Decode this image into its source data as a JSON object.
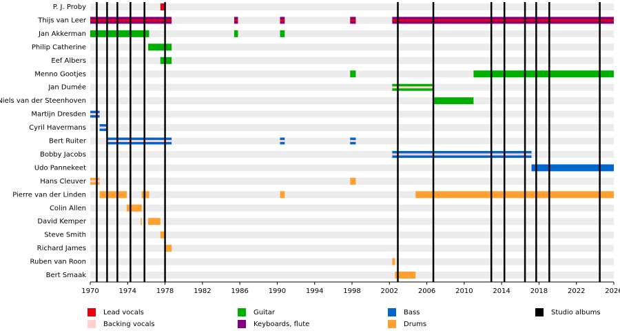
{
  "chart_data": {
    "type": "timeline",
    "xlim": [
      1970,
      2026
    ],
    "xticks": [
      1970,
      1974,
      1978,
      1982,
      1986,
      1990,
      1994,
      1998,
      2002,
      2006,
      2010,
      2014,
      2018,
      2022,
      2026
    ],
    "roles": [
      {
        "name": "Lead vocals",
        "color": "#e8000b"
      },
      {
        "name": "Backing vocals",
        "color": "#ffd0d0"
      },
      {
        "name": "Guitar",
        "color": "#00b000"
      },
      {
        "name": "Keyboards, flute",
        "color": "#800080"
      },
      {
        "name": "Bass",
        "color": "#0066cc"
      },
      {
        "name": "Drums",
        "color": "#ffa030"
      }
    ],
    "albums": {
      "name": "Studio albums",
      "color": "#000000",
      "years": [
        1970.7,
        1971.8,
        1972.9,
        1974.3,
        1975.8,
        1978.0,
        2002.9,
        2006.7,
        2012.9,
        2014.3,
        2016.5,
        2017.7,
        2019.1,
        2024.5
      ]
    },
    "members": [
      {
        "name": "P. J. Proby",
        "spans": [
          {
            "start": 1977.5,
            "end": 1978.0,
            "role": "Lead vocals"
          }
        ]
      },
      {
        "name": "Thijs van Leer",
        "spans": [
          {
            "start": 1970.0,
            "end": 1978.7,
            "role": "Keyboards, flute",
            "also": "Lead vocals"
          },
          {
            "start": 1985.4,
            "end": 1985.8,
            "role": "Keyboards, flute",
            "also": "Lead vocals"
          },
          {
            "start": 1990.3,
            "end": 1990.8,
            "role": "Keyboards, flute",
            "also": "Lead vocals"
          },
          {
            "start": 1997.8,
            "end": 1998.4,
            "role": "Keyboards, flute",
            "also": "Lead vocals"
          },
          {
            "start": 2002.3,
            "end": 2026.0,
            "role": "Keyboards, flute",
            "also": "Lead vocals"
          }
        ]
      },
      {
        "name": "Jan Akkerman",
        "spans": [
          {
            "start": 1970.0,
            "end": 1976.3,
            "role": "Guitar"
          },
          {
            "start": 1985.4,
            "end": 1985.8,
            "role": "Guitar"
          },
          {
            "start": 1990.3,
            "end": 1990.8,
            "role": "Guitar"
          }
        ]
      },
      {
        "name": "Philip Catherine",
        "spans": [
          {
            "start": 1976.2,
            "end": 1978.7,
            "role": "Guitar"
          }
        ]
      },
      {
        "name": "Eef Albers",
        "spans": [
          {
            "start": 1977.5,
            "end": 1978.7,
            "role": "Guitar"
          }
        ]
      },
      {
        "name": "Menno Gootjes",
        "spans": [
          {
            "start": 1997.8,
            "end": 1998.4,
            "role": "Guitar"
          },
          {
            "start": 2011.0,
            "end": 2026.0,
            "role": "Guitar"
          }
        ]
      },
      {
        "name": "Jan Dumée",
        "spans": [
          {
            "start": 2002.3,
            "end": 2006.8,
            "role": "Guitar",
            "also": "Backing vocals"
          }
        ]
      },
      {
        "name": "Niels van der Steenhoven",
        "spans": [
          {
            "start": 2006.8,
            "end": 2011.0,
            "role": "Guitar"
          }
        ]
      },
      {
        "name": "Martijn Dresden",
        "spans": [
          {
            "start": 1970.0,
            "end": 1971.0,
            "role": "Bass",
            "also": "Backing vocals"
          }
        ]
      },
      {
        "name": "Cyril Havermans",
        "spans": [
          {
            "start": 1971.0,
            "end": 1971.8,
            "role": "Bass",
            "also": "Backing vocals"
          }
        ]
      },
      {
        "name": "Bert Ruiter",
        "spans": [
          {
            "start": 1971.8,
            "end": 1978.7,
            "role": "Bass",
            "also": "Backing vocals"
          },
          {
            "start": 1990.3,
            "end": 1990.8,
            "role": "Bass",
            "also": "Backing vocals"
          },
          {
            "start": 1997.8,
            "end": 1998.4,
            "role": "Bass",
            "also": "Backing vocals"
          }
        ]
      },
      {
        "name": "Bobby Jacobs",
        "spans": [
          {
            "start": 2002.3,
            "end": 2017.2,
            "role": "Bass",
            "also": "Backing vocals"
          }
        ]
      },
      {
        "name": "Udo Pannekeet",
        "spans": [
          {
            "start": 2017.2,
            "end": 2026.0,
            "role": "Bass"
          }
        ]
      },
      {
        "name": "Hans Cleuver",
        "spans": [
          {
            "start": 1970.0,
            "end": 1971.0,
            "role": "Drums",
            "also": "Backing vocals"
          },
          {
            "start": 1997.8,
            "end": 1998.4,
            "role": "Drums"
          }
        ]
      },
      {
        "name": "Pierre van der Linden",
        "spans": [
          {
            "start": 1971.0,
            "end": 1973.9,
            "role": "Drums"
          },
          {
            "start": 1975.5,
            "end": 1976.3,
            "role": "Drums"
          },
          {
            "start": 1990.3,
            "end": 1990.8,
            "role": "Drums"
          },
          {
            "start": 2004.8,
            "end": 2026.0,
            "role": "Drums"
          }
        ]
      },
      {
        "name": "Colin Allen",
        "spans": [
          {
            "start": 1973.9,
            "end": 1975.5,
            "role": "Drums"
          }
        ]
      },
      {
        "name": "David Kemper",
        "spans": [
          {
            "start": 1975.4,
            "end": 1975.5,
            "role": "Drums"
          },
          {
            "start": 1976.2,
            "end": 1977.5,
            "role": "Drums"
          }
        ]
      },
      {
        "name": "Steve Smith",
        "spans": [
          {
            "start": 1977.5,
            "end": 1978.0,
            "role": "Drums"
          }
        ]
      },
      {
        "name": "Richard James",
        "spans": [
          {
            "start": 1978.0,
            "end": 1978.7,
            "role": "Drums"
          }
        ]
      },
      {
        "name": "Ruben van Roon",
        "spans": [
          {
            "start": 2002.3,
            "end": 2002.6,
            "role": "Drums"
          }
        ]
      },
      {
        "name": "Bert Smaak",
        "spans": [
          {
            "start": 2002.6,
            "end": 2004.8,
            "role": "Drums"
          }
        ]
      }
    ]
  }
}
